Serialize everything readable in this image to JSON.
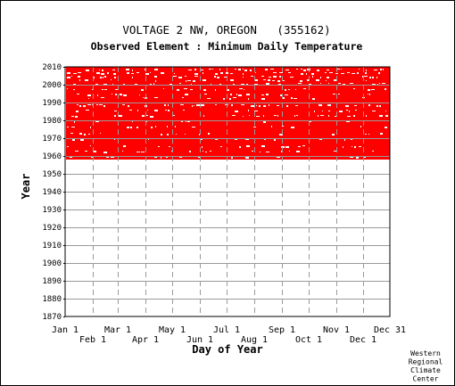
{
  "chart_data": {
    "type": "heatmap",
    "title": "VOLTAGE 2 NW, OREGON   (355162)",
    "subtitle": "Observed Element : Minimum Daily Temperature",
    "xlabel": "Day of Year",
    "ylabel": "Year",
    "ylim": [
      1870,
      2010
    ],
    "xlim": [
      1,
      365
    ],
    "y_ticks": [
      1870,
      1880,
      1890,
      1900,
      1910,
      1920,
      1930,
      1940,
      1950,
      1960,
      1970,
      1980,
      1990,
      2000,
      2010
    ],
    "x_ticks_top_row": [
      {
        "label": "Jan 1",
        "day": 1
      },
      {
        "label": "Mar 1",
        "day": 60
      },
      {
        "label": "May 1",
        "day": 121
      },
      {
        "label": "Jul 1",
        "day": 182
      },
      {
        "label": "Sep 1",
        "day": 244
      },
      {
        "label": "Nov 1",
        "day": 305
      },
      {
        "label": "Dec 31",
        "day": 365
      }
    ],
    "x_ticks_bottom_row": [
      {
        "label": "Feb 1",
        "day": 32
      },
      {
        "label": "Apr 1",
        "day": 91
      },
      {
        "label": "Jun 1",
        "day": 152
      },
      {
        "label": "Aug 1",
        "day": 213
      },
      {
        "label": "Oct 1",
        "day": 274
      },
      {
        "label": "Dec 1",
        "day": 335
      }
    ],
    "grid": true,
    "data_color": "#ff0000",
    "observed_period": [
      1958,
      2010
    ],
    "missing_bands": [
      {
        "year": 2008.5,
        "density": 0.5
      },
      {
        "year": 2006.5,
        "density": 0.45
      },
      {
        "year": 2004.5,
        "density": 0.4
      },
      {
        "year": 2002.5,
        "density": 0.35
      },
      {
        "year": 2000.5,
        "density": 0.35
      },
      {
        "year": 1997.5,
        "density": 0.3
      },
      {
        "year": 1994.5,
        "density": 0.3
      },
      {
        "year": 1992.5,
        "density": 0.25
      },
      {
        "year": 1988.5,
        "density": 0.45
      },
      {
        "year": 1985.5,
        "density": 0.35
      },
      {
        "year": 1982.5,
        "density": 0.3
      },
      {
        "year": 1979.5,
        "density": 0.25
      },
      {
        "year": 1976.5,
        "density": 0.25
      },
      {
        "year": 1972.5,
        "density": 0.25
      },
      {
        "year": 1969.5,
        "density": 0.2
      },
      {
        "year": 1965.5,
        "density": 0.25
      },
      {
        "year": 1962.5,
        "density": 0.2
      },
      {
        "year": 1959.5,
        "density": 0.15
      }
    ],
    "credit": [
      "Western",
      "Regional",
      "Climate",
      "Center"
    ]
  },
  "colors": {
    "data": "#ff0000",
    "grid": "#9a9a9a",
    "axis": "#000000",
    "background": "#ffffff"
  }
}
